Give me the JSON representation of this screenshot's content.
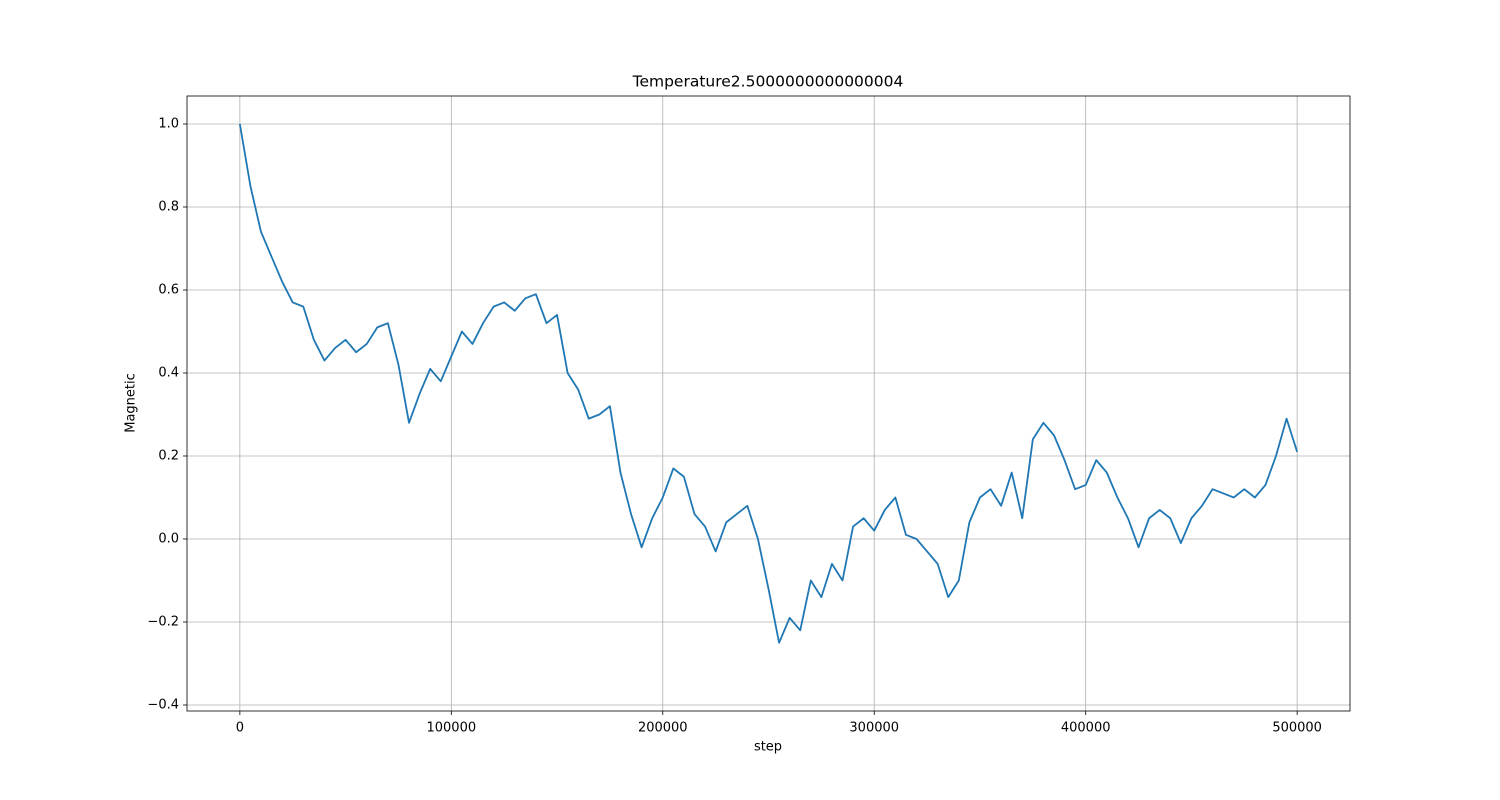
{
  "chart_data": {
    "type": "line",
    "title": "Temperature2.5000000000000004",
    "x_label": "step",
    "y_label": "Magnetic",
    "x": [
      0,
      5000,
      10000,
      15000,
      20000,
      25000,
      30000,
      35000,
      40000,
      45000,
      50000,
      55000,
      60000,
      65000,
      70000,
      75000,
      80000,
      85000,
      90000,
      95000,
      100000,
      105000,
      110000,
      115000,
      120000,
      125000,
      130000,
      135000,
      140000,
      145000,
      150000,
      155000,
      160000,
      165000,
      170000,
      175000,
      180000,
      185000,
      190000,
      195000,
      200000,
      205000,
      210000,
      215000,
      220000,
      225000,
      230000,
      235000,
      240000,
      245000,
      250000,
      255000,
      260000,
      265000,
      270000,
      275000,
      280000,
      285000,
      290000,
      295000,
      300000,
      305000,
      310000,
      315000,
      320000,
      325000,
      330000,
      335000,
      340000,
      345000,
      350000,
      355000,
      360000,
      365000,
      370000,
      375000,
      380000,
      385000,
      390000,
      395000,
      400000,
      405000,
      410000,
      415000,
      420000,
      425000,
      430000,
      435000,
      440000,
      445000,
      450000,
      455000,
      460000,
      465000,
      470000,
      475000,
      480000,
      485000,
      490000,
      495000,
      500000
    ],
    "series": [
      {
        "name": "Magnetic",
        "color": "#1f77b4",
        "values": [
          1.0,
          0.85,
          0.74,
          0.68,
          0.62,
          0.57,
          0.56,
          0.48,
          0.43,
          0.46,
          0.48,
          0.45,
          0.47,
          0.51,
          0.52,
          0.42,
          0.28,
          0.35,
          0.41,
          0.38,
          0.44,
          0.5,
          0.47,
          0.52,
          0.56,
          0.57,
          0.55,
          0.58,
          0.59,
          0.52,
          0.54,
          0.4,
          0.36,
          0.29,
          0.3,
          0.32,
          0.16,
          0.06,
          -0.02,
          0.05,
          0.1,
          0.17,
          0.15,
          0.06,
          0.03,
          -0.03,
          0.04,
          0.06,
          0.08,
          0.0,
          -0.12,
          -0.25,
          -0.19,
          -0.22,
          -0.1,
          -0.14,
          -0.06,
          -0.1,
          0.03,
          0.05,
          0.02,
          0.07,
          0.1,
          0.01,
          0.0,
          -0.03,
          -0.06,
          -0.14,
          -0.1,
          0.04,
          0.1,
          0.12,
          0.08,
          0.16,
          0.05,
          0.24,
          0.28,
          0.25,
          0.19,
          0.12,
          0.13,
          0.19,
          0.16,
          0.1,
          0.05,
          -0.02,
          0.05,
          0.07,
          0.05,
          -0.01,
          0.05,
          0.08,
          0.12,
          0.11,
          0.1,
          0.12,
          0.1,
          0.13,
          0.2,
          0.29,
          0.21
        ]
      }
    ],
    "xlim": [
      -25000,
      525000
    ],
    "xticks": [
      0,
      100000,
      200000,
      300000,
      400000,
      500000
    ],
    "ylim": [
      -0.4145,
      1.0675
    ],
    "yticks": [
      {
        "value": -0.4,
        "label": "−0.4"
      },
      {
        "value": -0.2,
        "label": "−0.2"
      },
      {
        "value": 0,
        "label": "0.0"
      },
      0.2,
      0.4,
      0.6,
      0.8,
      {
        "value": 1,
        "label": "1.0"
      }
    ],
    "grid": true
  }
}
